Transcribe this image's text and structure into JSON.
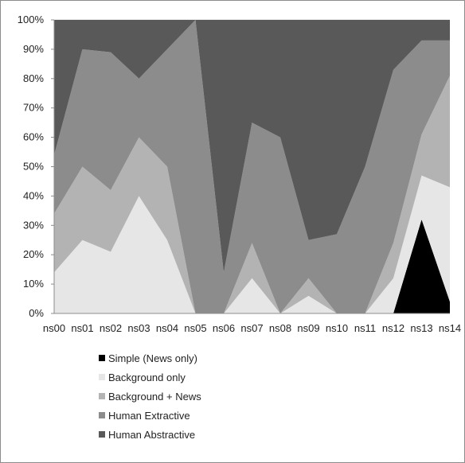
{
  "chart_data": {
    "type": "area",
    "stacked": "percent",
    "categories": [
      "ns00",
      "ns01",
      "ns02",
      "ns03",
      "ns04",
      "ns05",
      "ns06",
      "ns07",
      "ns08",
      "ns09",
      "ns10",
      "ns11",
      "ns12",
      "ns13",
      "ns14"
    ],
    "series": [
      {
        "name": "Simple (News only)",
        "color": "#000000",
        "values": [
          0,
          0,
          0,
          0,
          0,
          0,
          0,
          0,
          0,
          0,
          0,
          0,
          0,
          32,
          4
        ]
      },
      {
        "name": "Background only",
        "color": "#e6e6e6",
        "values": [
          14,
          25,
          21,
          40,
          25,
          0,
          0,
          12,
          0,
          6,
          0,
          0,
          12,
          15,
          39
        ]
      },
      {
        "name": "Background + News",
        "color": "#b3b3b3",
        "values": [
          20,
          25,
          21,
          20,
          25,
          0,
          0,
          12,
          0,
          6,
          0,
          0,
          12,
          14,
          38
        ]
      },
      {
        "name": "Human Extractive",
        "color": "#8c8c8c",
        "values": [
          20,
          40,
          47,
          20,
          40,
          100,
          14,
          41,
          60,
          13,
          27,
          50,
          59,
          32,
          12
        ]
      },
      {
        "name": "Human Abstractive",
        "color": "#595959",
        "values": [
          46,
          10,
          11,
          20,
          10,
          0,
          86,
          35,
          40,
          75,
          73,
          50,
          17,
          7,
          7
        ]
      }
    ],
    "ylim": [
      0,
      100
    ],
    "yticks": [
      "0%",
      "10%",
      "20%",
      "30%",
      "40%",
      "50%",
      "60%",
      "70%",
      "80%",
      "90%",
      "100%"
    ],
    "grid": true,
    "legend": "bottom"
  }
}
